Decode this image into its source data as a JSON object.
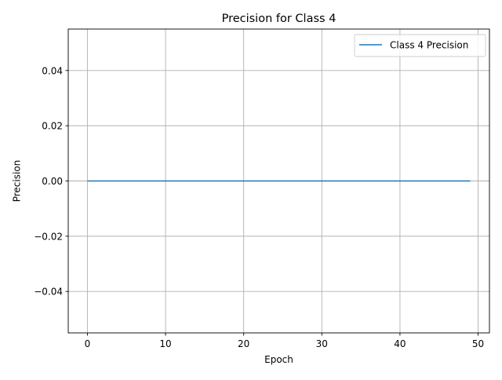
{
  "chart_data": {
    "type": "line",
    "title": "Precision for Class 4",
    "xlabel": "Epoch",
    "ylabel": "Precision",
    "xlim": [
      -2.45,
      51.45
    ],
    "ylim": [
      -0.055,
      0.055
    ],
    "xticks": [
      0,
      10,
      20,
      30,
      40,
      50
    ],
    "xtick_labels": [
      "0",
      "10",
      "20",
      "30",
      "40",
      "50"
    ],
    "yticks": [
      -0.04,
      -0.02,
      0.0,
      0.02,
      0.04
    ],
    "ytick_labels": [
      "−0.04",
      "−0.02",
      "0.00",
      "0.02",
      "0.04"
    ],
    "grid": true,
    "legend_position": "top-right",
    "x": [
      0,
      1,
      2,
      3,
      4,
      5,
      6,
      7,
      8,
      9,
      10,
      11,
      12,
      13,
      14,
      15,
      16,
      17,
      18,
      19,
      20,
      21,
      22,
      23,
      24,
      25,
      26,
      27,
      28,
      29,
      30,
      31,
      32,
      33,
      34,
      35,
      36,
      37,
      38,
      39,
      40,
      41,
      42,
      43,
      44,
      45,
      46,
      47,
      48,
      49
    ],
    "series": [
      {
        "name": "Class 4 Precision",
        "color": "#1f77b4",
        "values": [
          0,
          0,
          0,
          0,
          0,
          0,
          0,
          0,
          0,
          0,
          0,
          0,
          0,
          0,
          0,
          0,
          0,
          0,
          0,
          0,
          0,
          0,
          0,
          0,
          0,
          0,
          0,
          0,
          0,
          0,
          0,
          0,
          0,
          0,
          0,
          0,
          0,
          0,
          0,
          0,
          0,
          0,
          0,
          0,
          0,
          0,
          0,
          0,
          0,
          0
        ]
      }
    ]
  }
}
